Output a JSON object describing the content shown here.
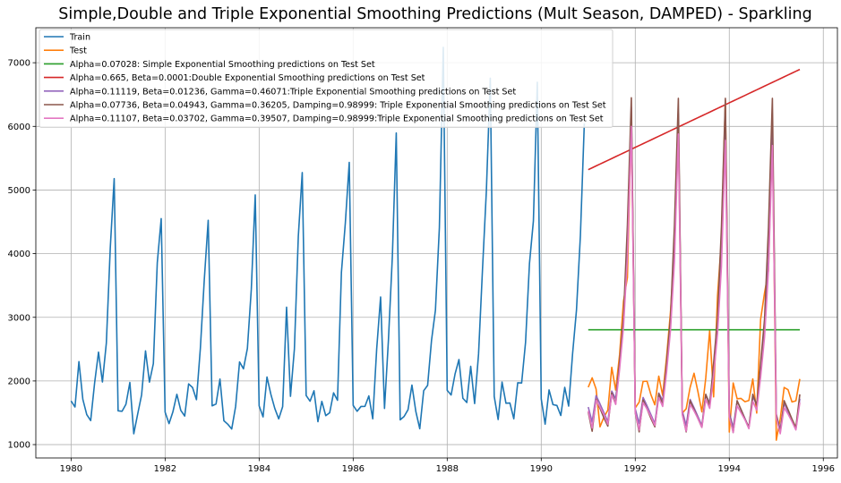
{
  "chart_data": {
    "type": "line",
    "title": "Simple,Double and Triple Exponential Smoothing Predictions (Mult Season, DAMPED) - Sparkling",
    "xlabel": "",
    "ylabel": "",
    "xlim": [
      1979.25,
      1996.3
    ],
    "ylim": [
      790,
      7550
    ],
    "xticks": [
      1980,
      1982,
      1984,
      1986,
      1988,
      1990,
      1992,
      1994,
      1996
    ],
    "yticks": [
      1000,
      2000,
      3000,
      4000,
      5000,
      6000,
      7000
    ],
    "grid": true,
    "legend_position": "top-left",
    "series": [
      {
        "name": "Train",
        "color": "#1f77b4",
        "start": 1980.0,
        "step": 0.0833333,
        "values": [
          1686,
          1591,
          2304,
          1712,
          1471,
          1377,
          1966,
          2453,
          1984,
          2596,
          4087,
          5179,
          1530,
          1523,
          1633,
          1976,
          1170,
          1480,
          1781,
          2472,
          1981,
          2273,
          3857,
          4551,
          1510,
          1329,
          1518,
          1790,
          1537,
          1449,
          1954,
          1897,
          1706,
          2514,
          3593,
          4524,
          1609,
          1638,
          2030,
          1375,
          1320,
          1245,
          1600,
          2298,
          2191,
          2511,
          3440,
          4923,
          1609,
          1435,
          2061,
          1789,
          1567,
          1404,
          1597,
          3159,
          1759,
          2504,
          4273,
          5274,
          1771,
          1682,
          1846,
          1360,
          1679,
          1455,
          1500,
          1813,
          1696,
          3705,
          4482,
          5434,
          1617,
          1523,
          1599,
          1600,
          1765,
          1405,
          2500,
          3319,
          1568,
          2640,
          3954,
          5897,
          1389,
          1442,
          1548,
          1935,
          1518,
          1250,
          1847,
          1930,
          2638,
          3114,
          4405,
          7242,
          1853,
          1779,
          2108,
          2336,
          1728,
          1661,
          2230,
          1645,
          2421,
          3740,
          4988,
          6757,
          1757,
          1394,
          1982,
          1650,
          1654,
          1406,
          1971,
          1968,
          2608,
          3845,
          4514,
          6694,
          1720,
          1321,
          1859,
          1628,
          1615,
          1457,
          1899,
          1605,
          2424,
          3116,
          4286,
          6047
        ]
      },
      {
        "name": "Test",
        "color": "#ff7f0e",
        "start": 1991.0,
        "step": 0.0833333,
        "values": [
          1902,
          2049,
          1874,
          1279,
          1432,
          1540,
          2214,
          1857,
          2408,
          3252,
          3627,
          6153,
          1577,
          1667,
          1993,
          1997,
          1783,
          1625,
          2076,
          1773,
          2377,
          3088,
          4096,
          6119,
          1494,
          1564,
          1898,
          2121,
          1831,
          1515,
          2048,
          2795,
          1749,
          3339,
          4227,
          6410,
          1197,
          1968,
          1720,
          1725,
          1674,
          1693,
          2031,
          1495,
          2968,
          3385,
          3729,
          5999,
          1070,
          1402,
          1897,
          1862,
          1670,
          1688,
          2031
        ]
      },
      {
        "name": "Alpha=0.07028: Simple Exponential Smoothing predictions on Test Set",
        "color": "#2ca02c",
        "start": 1991.0,
        "step": 0.0833333,
        "values": [
          2804,
          2804,
          2804,
          2804,
          2804,
          2804,
          2804,
          2804,
          2804,
          2804,
          2804,
          2804,
          2804,
          2804,
          2804,
          2804,
          2804,
          2804,
          2804,
          2804,
          2804,
          2804,
          2804,
          2804,
          2804,
          2804,
          2804,
          2804,
          2804,
          2804,
          2804,
          2804,
          2804,
          2804,
          2804,
          2804,
          2804,
          2804,
          2804,
          2804,
          2804,
          2804,
          2804,
          2804,
          2804,
          2804,
          2804,
          2804,
          2804,
          2804,
          2804,
          2804,
          2804,
          2804,
          2804
        ]
      },
      {
        "name": "Alpha=0.665, Beta=0.0001:Double Exponential Smoothing predictions on Test Set",
        "color": "#d62728",
        "start": 1991.0,
        "step": 0.0833333,
        "values_linear": [
          5320,
          6895
        ],
        "count": 55
      },
      {
        "name": "Alpha=0.11119, Beta=0.01236, Gamma=0.46071:Triple Exponential Smoothing predictions on Test Set",
        "color": "#9467bd",
        "start": 1991.0,
        "step": 0.0833333,
        "values": [
          1590,
          1355,
          1770,
          1640,
          1500,
          1360,
          1840,
          1720,
          2270,
          2940,
          4110,
          6300,
          1560,
          1330,
          1740,
          1610,
          1470,
          1330,
          1810,
          1690,
          2230,
          2890,
          4040,
          6200,
          1530,
          1300,
          1710,
          1580,
          1440,
          1300,
          1780,
          1660,
          2190,
          2840,
          3970,
          6100,
          1500,
          1270,
          1680,
          1550,
          1410,
          1270,
          1750,
          1630,
          2150,
          2790,
          3900,
          6000,
          1470,
          1240,
          1650,
          1520,
          1380,
          1240,
          1720
        ]
      },
      {
        "name": "Alpha=0.07736, Beta=0.04943, Gamma=0.36205, Damping=0.98999: Triple Exponential Smoothing predictions on Test Set",
        "color": "#8c564b",
        "start": 1991.0,
        "step": 0.0833333,
        "values": [
          1510,
          1210,
          1710,
          1570,
          1420,
          1290,
          1810,
          1640,
          2300,
          3000,
          4450,
          6450,
          1500,
          1200,
          1700,
          1560,
          1410,
          1280,
          1800,
          1630,
          2290,
          2990,
          4440,
          6440,
          1490,
          1200,
          1690,
          1550,
          1410,
          1270,
          1790,
          1620,
          2280,
          2980,
          4420,
          6440,
          1480,
          1190,
          1690,
          1550,
          1400,
          1270,
          1790,
          1620,
          2280,
          2970,
          4410,
          6440,
          1480,
          1190,
          1690,
          1550,
          1400,
          1270,
          1790
        ]
      },
      {
        "name": "Alpha=0.11107, Beta=0.03702, Gamma=0.39507, Damping=0.98999:Triple Exponential Smoothing predictions on Test Set",
        "color": "#e377c2",
        "start": 1991.0,
        "step": 0.0833333,
        "values": [
          1530,
          1260,
          1700,
          1590,
          1470,
          1320,
          1780,
          1630,
          2180,
          2850,
          3950,
          6000,
          1500,
          1230,
          1660,
          1560,
          1440,
          1300,
          1740,
          1600,
          2140,
          2800,
          3870,
          5880,
          1470,
          1210,
          1630,
          1530,
          1410,
          1270,
          1710,
          1570,
          2090,
          2740,
          3800,
          5780,
          1440,
          1190,
          1610,
          1500,
          1390,
          1250,
          1680,
          1540,
          2060,
          2690,
          3730,
          5700,
          1420,
          1170,
          1580,
          1480,
          1360,
          1230,
          1660
        ]
      }
    ]
  }
}
